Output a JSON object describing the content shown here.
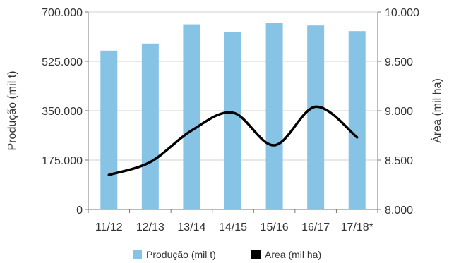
{
  "chart_data": {
    "type": "bar",
    "categories": [
      "11/12",
      "12/13",
      "13/14",
      "14/15",
      "15/16",
      "16/17",
      "17/18*"
    ],
    "series": [
      {
        "name": "Produção (mil t)",
        "type": "bar",
        "axis": "left",
        "color": "#87c3e5",
        "values": [
          563000,
          588000,
          656000,
          630000,
          661000,
          652000,
          632000
        ]
      },
      {
        "name": "Área (mil ha)",
        "type": "line",
        "axis": "right",
        "color": "#000000",
        "values": [
          8350,
          8480,
          8800,
          8980,
          8650,
          9040,
          8730
        ]
      }
    ],
    "ylabel": "Produção (mil t)",
    "y2label": "Área (mil ha)",
    "ylim": [
      0,
      700000
    ],
    "y2lim": [
      8000,
      10000
    ],
    "yticks": [
      "0",
      "175.000",
      "350.000",
      "525.000",
      "700.000"
    ],
    "y2ticks": [
      "8.000",
      "8.500",
      "9.000",
      "9.500",
      "10.000"
    ],
    "legend_position": "bottom",
    "grid": true
  }
}
